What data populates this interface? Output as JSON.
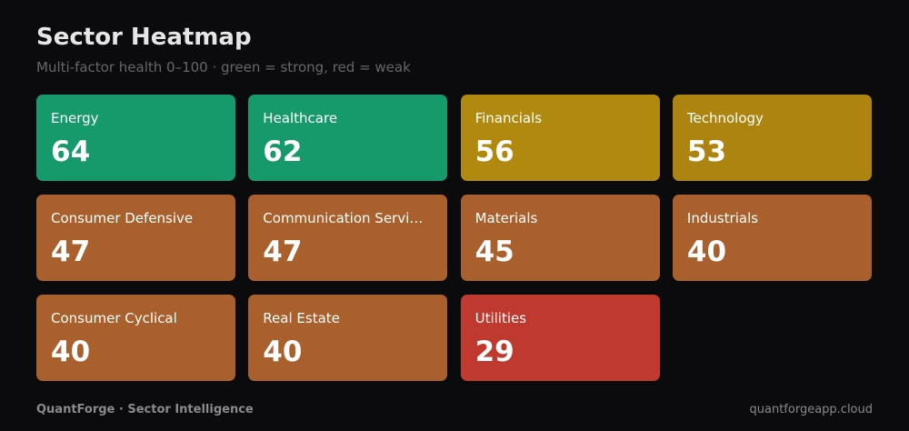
{
  "header": {
    "title": "Sector Heatmap",
    "subtitle": "Multi-factor health 0–100 · green = strong, red = weak"
  },
  "tiles": [
    {
      "label": "Energy",
      "value": 64,
      "color": "#179a6b"
    },
    {
      "label": "Healthcare",
      "value": 62,
      "color": "#179a6b"
    },
    {
      "label": "Financials",
      "value": 56,
      "color": "#b2890f"
    },
    {
      "label": "Technology",
      "value": 53,
      "color": "#ae8410"
    },
    {
      "label": "Consumer Defensive",
      "value": 47,
      "color": "#a9602d"
    },
    {
      "label": "Communication Servi…",
      "value": 47,
      "color": "#a9602d"
    },
    {
      "label": "Materials",
      "value": 45,
      "color": "#a9602d"
    },
    {
      "label": "Industrials",
      "value": 40,
      "color": "#a9602d"
    },
    {
      "label": "Consumer Cyclical",
      "value": 40,
      "color": "#a9602d"
    },
    {
      "label": "Real Estate",
      "value": 40,
      "color": "#a9602d"
    },
    {
      "label": "Utilities",
      "value": 29,
      "color": "#c0392f"
    }
  ],
  "footer": {
    "left": "QuantForge · Sector Intelligence",
    "right": "quantforgeapp.cloud"
  }
}
